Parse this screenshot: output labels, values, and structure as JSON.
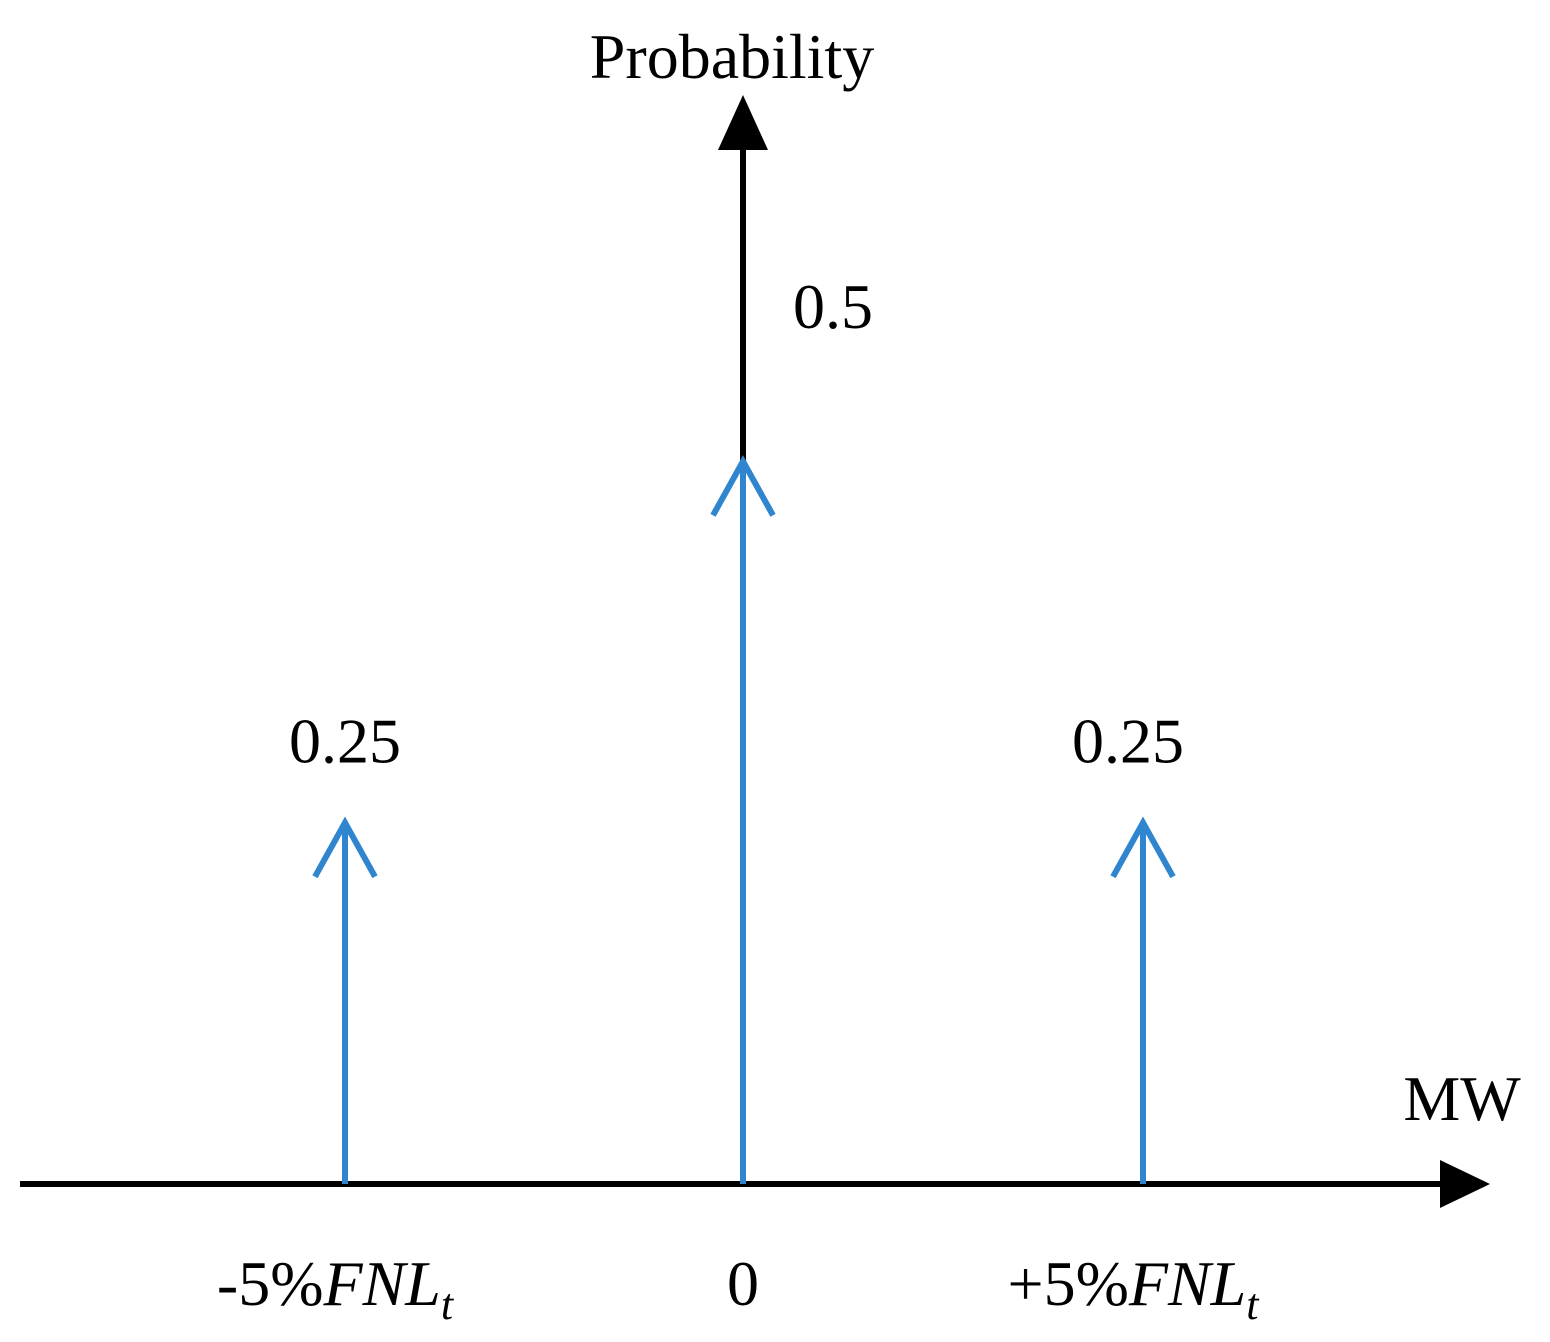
{
  "chart_data": {
    "type": "stem",
    "title": "",
    "ylabel": "Probability",
    "xlabel": "MW",
    "x_categories": [
      {
        "prefix": "-5%",
        "main": "FNL",
        "sub": "t"
      },
      {
        "prefix": "",
        "main": "0",
        "sub": ""
      },
      {
        "prefix": "+5%",
        "main": "FNL",
        "sub": "t"
      }
    ],
    "values": [
      0.25,
      0.5,
      0.25
    ],
    "value_labels": [
      "0.25",
      "0.5",
      "0.25"
    ],
    "ylim": [
      0,
      0.75
    ],
    "grid": false,
    "legend": "none"
  },
  "colors": {
    "axis": "#000000",
    "stem": "#2f86cf"
  }
}
